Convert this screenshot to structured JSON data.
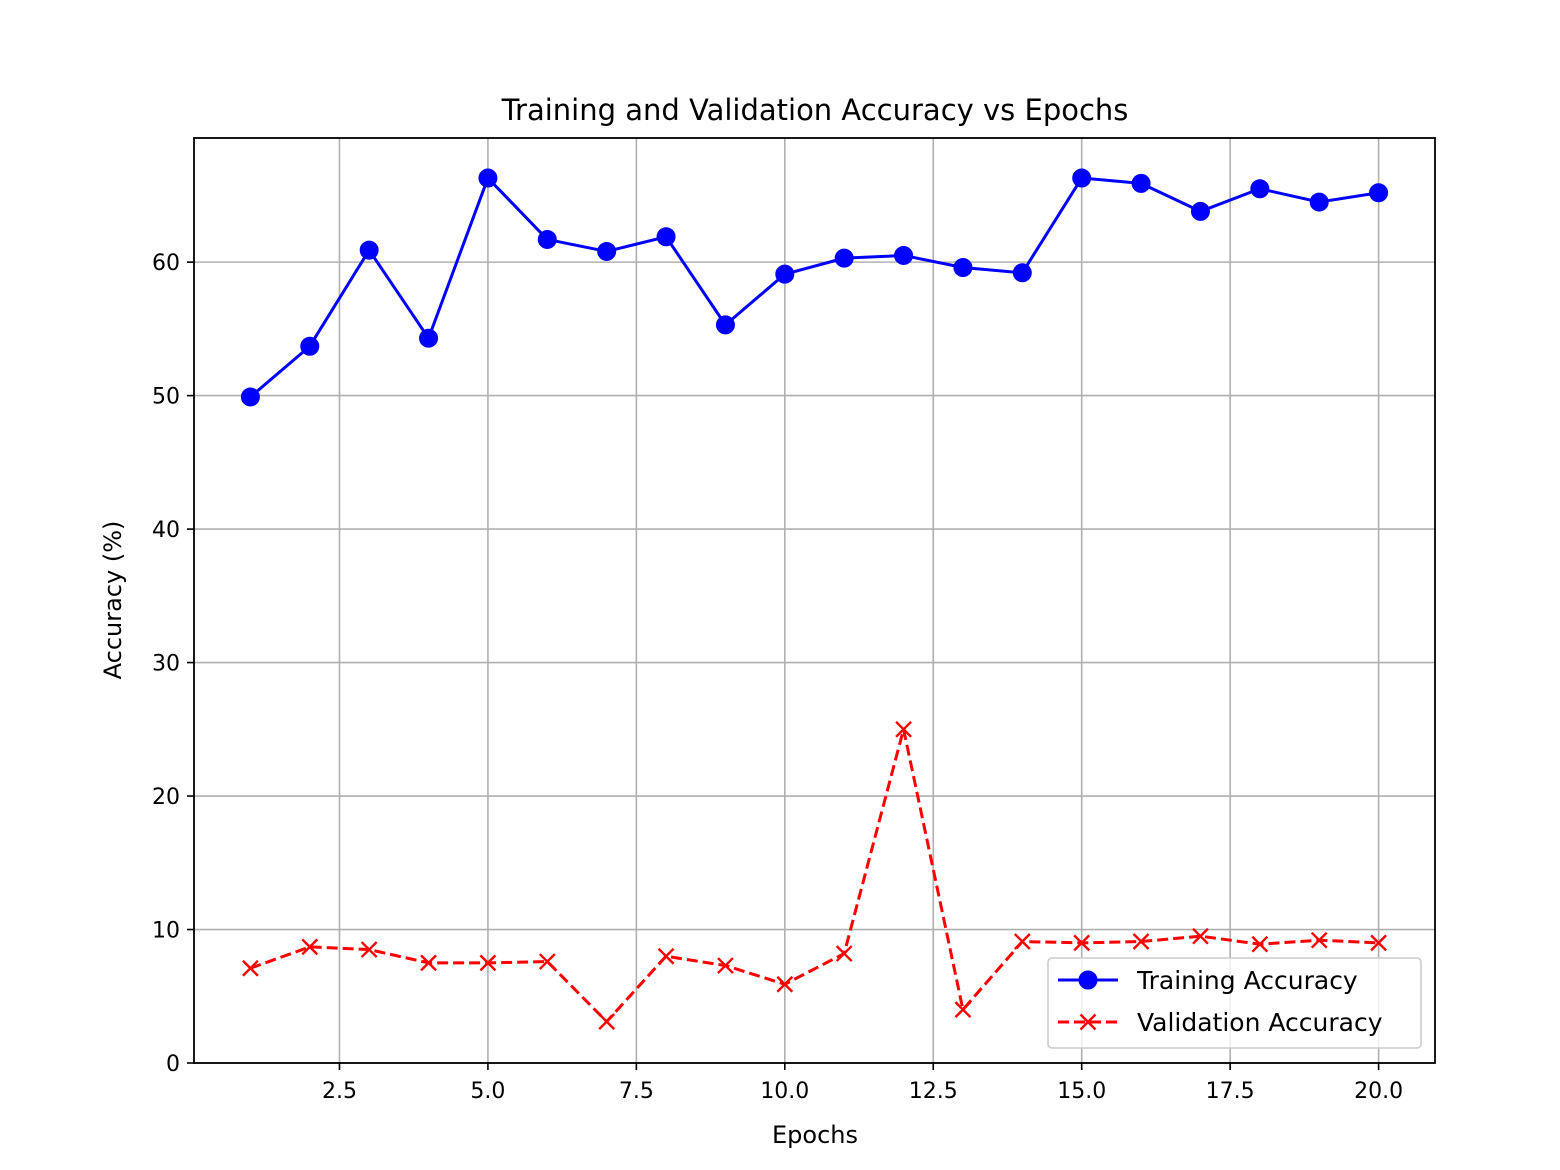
{
  "chart_data": {
    "type": "line",
    "title": "Training and Validation Accuracy vs Epochs",
    "xlabel": "Epochs",
    "ylabel": "Accuracy (%)",
    "xlim": [
      0.05,
      20.95
    ],
    "ylim": [
      0,
      69.3
    ],
    "xticks": [
      2.5,
      5.0,
      7.5,
      10.0,
      12.5,
      15.0,
      17.5,
      20.0
    ],
    "xtick_labels": [
      "2.5",
      "5.0",
      "7.5",
      "10.0",
      "12.5",
      "15.0",
      "17.5",
      "20.0"
    ],
    "yticks": [
      0,
      10,
      20,
      30,
      40,
      50,
      60
    ],
    "ytick_labels": [
      "0",
      "10",
      "20",
      "30",
      "40",
      "50",
      "60"
    ],
    "grid": true,
    "legend_position": "lower-right",
    "x": [
      1,
      2,
      3,
      4,
      5,
      6,
      7,
      8,
      9,
      10,
      11,
      12,
      13,
      14,
      15,
      16,
      17,
      18,
      19,
      20
    ],
    "series": [
      {
        "name": "Training Accuracy",
        "color": "#0000ff",
        "line_style": "solid",
        "marker": "circle",
        "values": [
          49.9,
          53.7,
          60.9,
          54.3,
          66.3,
          61.7,
          60.8,
          61.9,
          55.3,
          59.1,
          60.3,
          60.5,
          59.6,
          59.2,
          66.3,
          65.9,
          63.8,
          65.5,
          64.5,
          65.2
        ]
      },
      {
        "name": "Validation Accuracy",
        "color": "#ff0000",
        "line_style": "dashed",
        "marker": "x",
        "values": [
          7.1,
          8.7,
          8.5,
          7.5,
          7.5,
          7.6,
          3.1,
          8.0,
          7.3,
          5.9,
          8.2,
          25.0,
          4.0,
          9.1,
          9.0,
          9.1,
          9.5,
          8.9,
          9.2,
          9.0
        ]
      }
    ]
  }
}
